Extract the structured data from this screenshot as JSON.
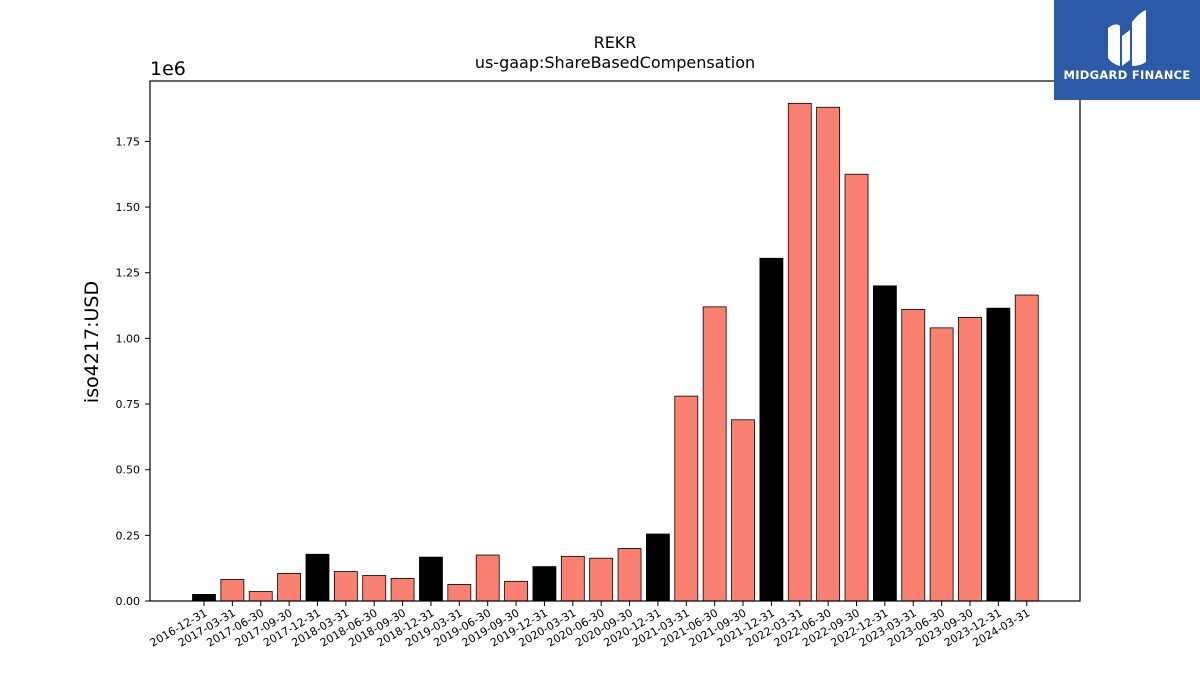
{
  "chart_data": {
    "type": "bar",
    "title": "REKR",
    "subtitle": "us-gaap:ShareBasedCompensation",
    "ylabel": "iso4217:USD",
    "xlabel": "",
    "y_multiplier_label": "1e6",
    "ylim": [
      0,
      1.98
    ],
    "y_ticks": [
      0.0,
      0.25,
      0.5,
      0.75,
      1.0,
      1.25,
      1.5,
      1.75
    ],
    "y_tick_labels": [
      "0.00",
      "0.25",
      "0.50",
      "0.75",
      "1.00",
      "1.25",
      "1.50",
      "1.75"
    ],
    "grid": false,
    "colors": {
      "quarter": "#fa8072",
      "year_end": "#000000",
      "edge": "#000000"
    },
    "categories": [
      "2016-12-31",
      "2017-03-31",
      "2017-06-30",
      "2017-09-30",
      "2017-12-31",
      "2018-03-31",
      "2018-06-30",
      "2018-09-30",
      "2018-12-31",
      "2019-03-31",
      "2019-06-30",
      "2019-09-30",
      "2019-12-31",
      "2020-03-31",
      "2020-06-30",
      "2020-09-30",
      "2020-12-31",
      "2021-03-31",
      "2021-06-30",
      "2021-09-30",
      "2021-12-31",
      "2022-03-31",
      "2022-06-30",
      "2022-09-30",
      "2022-12-31",
      "2023-03-31",
      "2023-06-30",
      "2023-09-30",
      "2023-12-31",
      "2024-03-31"
    ],
    "values": [
      0.025,
      0.082,
      0.036,
      0.105,
      0.178,
      0.112,
      0.097,
      0.086,
      0.167,
      0.063,
      0.175,
      0.075,
      0.131,
      0.17,
      0.163,
      0.2,
      0.255,
      0.78,
      1.12,
      0.69,
      1.305,
      1.895,
      1.88,
      1.625,
      1.2,
      1.11,
      1.04,
      1.08,
      1.115,
      1.165
    ],
    "year_end": [
      true,
      false,
      false,
      false,
      true,
      false,
      false,
      false,
      true,
      false,
      false,
      false,
      true,
      false,
      false,
      false,
      true,
      false,
      false,
      false,
      true,
      false,
      false,
      false,
      true,
      false,
      false,
      false,
      true,
      false
    ]
  },
  "logo": {
    "text": "MIDGARD FINANCE"
  }
}
